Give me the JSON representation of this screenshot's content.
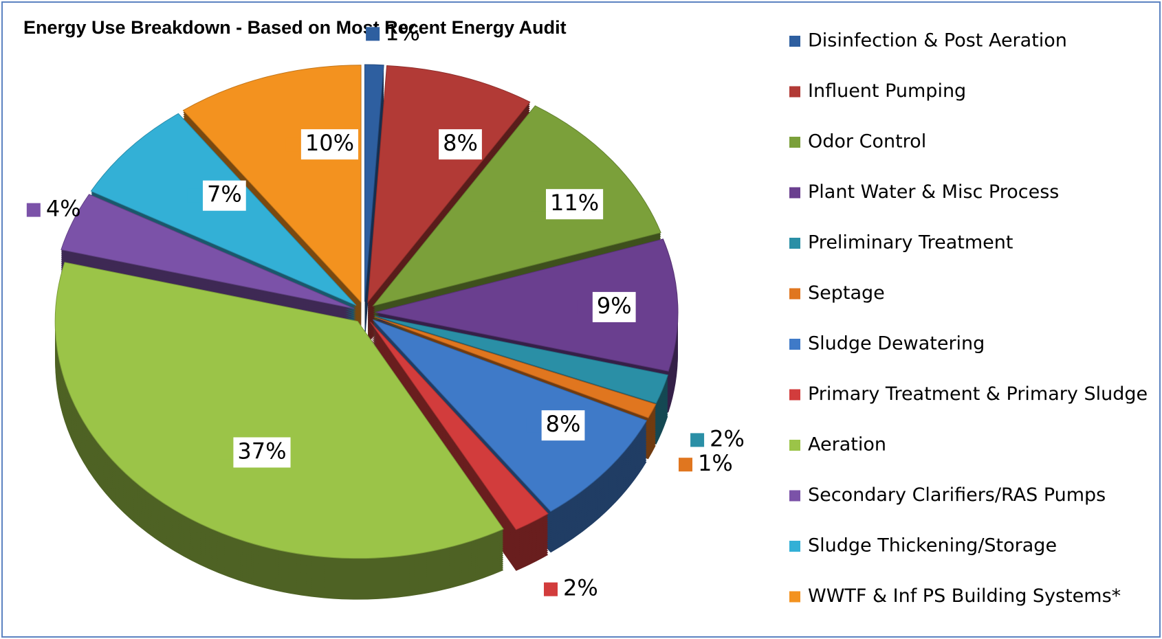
{
  "chart_data": {
    "type": "pie",
    "title": "Energy Use Breakdown - Based on Most Recent Energy Audit",
    "categories": [
      "Disinfection & Post Aeration",
      "Influent Pumping",
      "Odor Control",
      "Plant Water & Misc Process",
      "Preliminary Treatment",
      "Septage",
      "Sludge Dewatering",
      "Primary Treatment & Primary Sludge",
      "Aeration",
      "Secondary Clarifiers/RAS Pumps",
      "Sludge Thickening/Storage",
      "WWTF & Inf PS Building Systems*"
    ],
    "values": [
      1,
      8,
      11,
      9,
      2,
      1,
      8,
      2,
      37,
      4,
      7,
      10
    ],
    "value_labels": [
      "1%",
      "8%",
      "11%",
      "9%",
      "2%",
      "1%",
      "8%",
      "2%",
      "37%",
      "4%",
      "7%",
      "10%"
    ],
    "colors": [
      "#2e5fa0",
      "#b23a36",
      "#7ba03a",
      "#6a3f8f",
      "#2a8fa6",
      "#e0761f",
      "#3f7ac8",
      "#d23c3c",
      "#9bc448",
      "#7b52a8",
      "#33b0d6",
      "#f3921f"
    ],
    "legend": "right"
  }
}
